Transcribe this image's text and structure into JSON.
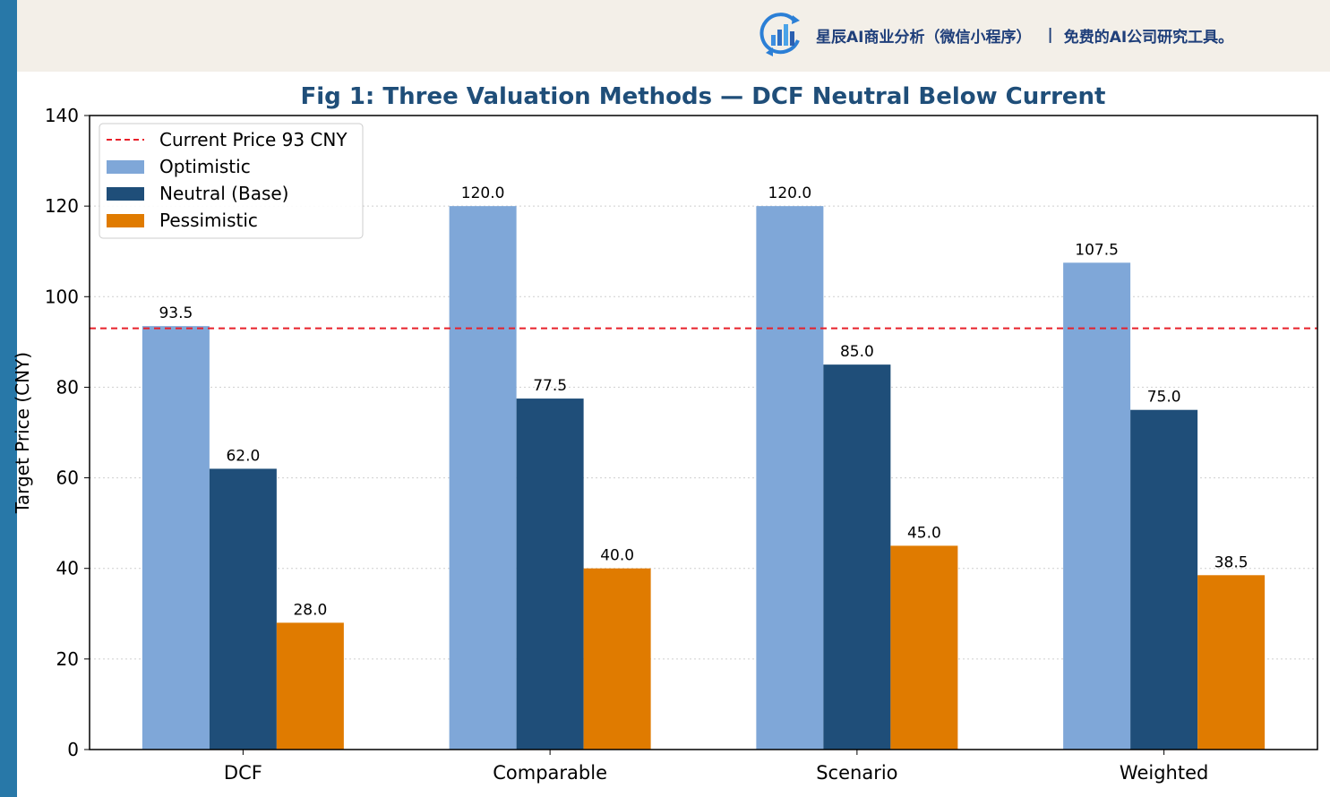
{
  "banner": {
    "brand_name": "星辰AI商业分析（微信小程序）",
    "separator": "|",
    "tagline": "免费的AI公司研究工具。",
    "logo_icon": "bar-chart-refresh-icon"
  },
  "chart_data": {
    "type": "bar",
    "title": "Fig 1: Three Valuation Methods — DCF Neutral Below Current",
    "xlabel": "",
    "ylabel": "Target Price (CNY)",
    "ylim": [
      0,
      140
    ],
    "yticks": [
      0,
      20,
      40,
      60,
      80,
      100,
      120,
      140
    ],
    "grid": "y-dotted",
    "legend_position": "top-left",
    "categories": [
      "DCF",
      "Comparable",
      "Scenario",
      "Weighted"
    ],
    "series": [
      {
        "name": "Optimistic",
        "color": "#7fa7d8",
        "values": [
          93.5,
          120.0,
          120.0,
          107.5
        ]
      },
      {
        "name": "Neutral (Base)",
        "color": "#1f4e79",
        "values": [
          62.0,
          77.5,
          85.0,
          75.0
        ]
      },
      {
        "name": "Pessimistic",
        "color": "#e07b00",
        "values": [
          28.0,
          40.0,
          45.0,
          38.5
        ]
      }
    ],
    "reference_line": {
      "label": "Current Price 93 CNY",
      "value": 93,
      "color": "#e8202a",
      "style": "dashed"
    },
    "title_color": "#1f4e79"
  }
}
